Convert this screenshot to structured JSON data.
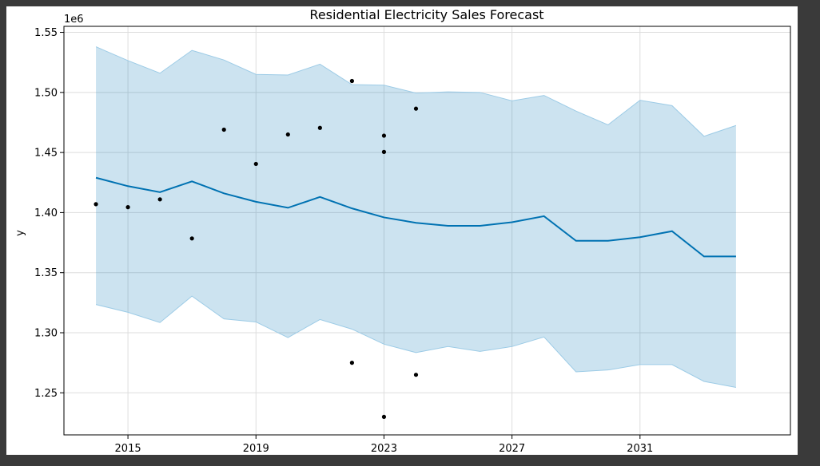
{
  "chart_data": {
    "type": "line",
    "title": "Residential Electricity Sales Forecast",
    "xlabel": "",
    "ylabel": "y",
    "y_offset_label": "1e6",
    "xlim": [
      2013.0,
      2035.7
    ],
    "ylim": [
      1215000,
      1555000
    ],
    "grid": true,
    "x_ticks": [
      2015,
      2019,
      2023,
      2027,
      2031
    ],
    "x_tick_labels": [
      "2015",
      "2019",
      "2023",
      "2027",
      "2031"
    ],
    "y_ticks": [
      1250000,
      1300000,
      1350000,
      1400000,
      1450000,
      1500000,
      1550000
    ],
    "y_tick_labels": [
      "1.25",
      "1.30",
      "1.35",
      "1.40",
      "1.45",
      "1.50",
      "1.55"
    ],
    "colors": {
      "forecast_line": "#0072b2",
      "interval_fill": "#0072b2",
      "interval_edge": "#9ccbe6",
      "observed": "#000000"
    },
    "series": [
      {
        "kind": "forecast",
        "x": [
          2014,
          2015,
          2016,
          2017,
          2018,
          2019,
          2020,
          2021,
          2022,
          2023,
          2024,
          2025,
          2026,
          2027,
          2028,
          2029,
          2030,
          2031,
          2032,
          2033,
          2034
        ],
        "yhat": [
          1429000,
          1422000,
          1417000,
          1426000,
          1416000,
          1409000,
          1404000,
          1413000,
          1403500,
          1396000,
          1391500,
          1389000,
          1389000,
          1392000,
          1397000,
          1376500,
          1376500,
          1379500,
          1384500,
          1363500,
          1363500
        ],
        "yhat_lower": [
          1323500,
          1317000,
          1308500,
          1330500,
          1311500,
          1309000,
          1296000,
          1311000,
          1303000,
          1290500,
          1283500,
          1288500,
          1284500,
          1288500,
          1296500,
          1267500,
          1269000,
          1273500,
          1273500,
          1259500,
          1254500
        ],
        "yhat_upper": [
          1538000,
          1526500,
          1516000,
          1535000,
          1527000,
          1515000,
          1514500,
          1523500,
          1506500,
          1506000,
          1499500,
          1500500,
          1500000,
          1493000,
          1497500,
          1484500,
          1473000,
          1493500,
          1489000,
          1463500,
          1472500
        ]
      },
      {
        "kind": "observed",
        "points": [
          [
            2014,
            1407000
          ],
          [
            2015,
            1404500
          ],
          [
            2016,
            1411000
          ],
          [
            2017,
            1378500
          ],
          [
            2018,
            1469000
          ],
          [
            2019,
            1440500
          ],
          [
            2020,
            1465000
          ],
          [
            2021,
            1470500
          ],
          [
            2022,
            1509500
          ],
          [
            2022,
            1275000
          ],
          [
            2023,
            1464000
          ],
          [
            2023,
            1450500
          ],
          [
            2023,
            1230000
          ],
          [
            2024,
            1486500
          ],
          [
            2024,
            1265000
          ]
        ]
      }
    ]
  }
}
